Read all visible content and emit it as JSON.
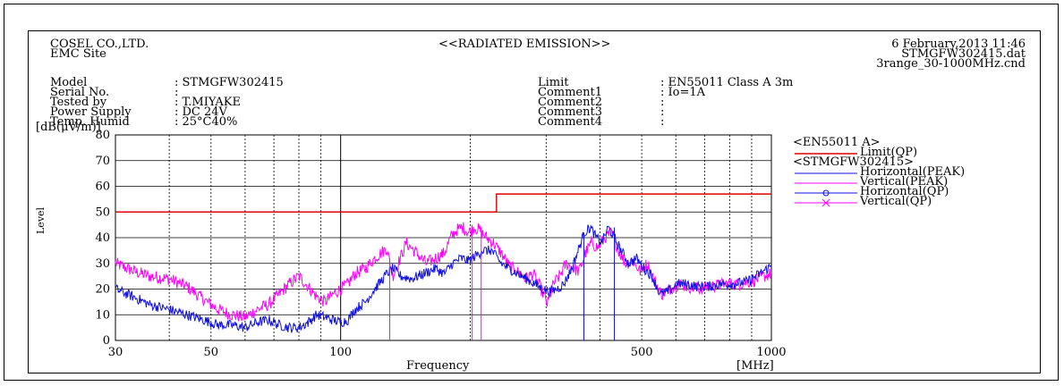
{
  "header": {
    "company": "COSEL CO.,LTD.",
    "site": "EMC Site",
    "title": "<<RADIATED EMISSION>>",
    "date": "6 February,2013 11:46",
    "data_file": "STMGFW302415.dat",
    "cond_file": "3range_30-1000MHz.cnd"
  },
  "info_left": {
    "labels": [
      "Model",
      "Serial No.",
      "Tested by",
      "Power Supply",
      "Temp. Humid"
    ],
    "values": [
      ": STMGFW302415",
      ":",
      ": T.MIYAKE",
      ": DC 24V",
      ": 25°C40%"
    ]
  },
  "info_right": {
    "labels": [
      "Limit",
      "Comment1",
      "Comment2",
      "Comment3",
      "Comment4"
    ],
    "values": [
      ": EN55011  Class A 3m",
      ": Io=1A",
      ":",
      ":",
      ":"
    ]
  },
  "legend": {
    "group1": "<EN55011 A>",
    "limit": "Limit(QP)",
    "group2": "<STMGFW302415>",
    "h_peak": "Horizontal(PEAK)",
    "v_peak": "Vertical(PEAK)",
    "h_qp": "Horizontal(QP)",
    "v_qp": "Vertical(QP)"
  },
  "chart_data": {
    "type": "line",
    "x_scale": "log",
    "xlim": [
      30,
      1000
    ],
    "ylim": [
      0,
      80
    ],
    "x_ticks": [
      30,
      50,
      100,
      500,
      1000
    ],
    "y_ticks": [
      0,
      10,
      20,
      30,
      40,
      50,
      60,
      70,
      80
    ],
    "xlabel": "Frequency",
    "x_unit": "[MHz]",
    "ylabel": "Level",
    "y_unit": "[dB(μV/m)]",
    "grid": true,
    "legend_position": "right",
    "colors": {
      "limit": "#e00000",
      "horizontal": "#1010e0",
      "vertical": "#ff00ff"
    },
    "limit": {
      "name": "Limit(QP)",
      "segments": [
        {
          "x": [
            30,
            230
          ],
          "y": 50
        },
        {
          "x": [
            230,
            1000
          ],
          "y": 57
        }
      ]
    },
    "series": [
      {
        "name": "Vertical(PEAK)",
        "points": [
          [
            30,
            30
          ],
          [
            33,
            27
          ],
          [
            36,
            25
          ],
          [
            40,
            24
          ],
          [
            44,
            21
          ],
          [
            48,
            16
          ],
          [
            52,
            12
          ],
          [
            56,
            10
          ],
          [
            60,
            9
          ],
          [
            64,
            12
          ],
          [
            68,
            14
          ],
          [
            72,
            18
          ],
          [
            76,
            22
          ],
          [
            80,
            25
          ],
          [
            84,
            21
          ],
          [
            88,
            17
          ],
          [
            92,
            15
          ],
          [
            96,
            18
          ],
          [
            100,
            20
          ],
          [
            104,
            22
          ],
          [
            108,
            26
          ],
          [
            114,
            28
          ],
          [
            120,
            32
          ],
          [
            128,
            36
          ],
          [
            132,
            25
          ],
          [
            136,
            30
          ],
          [
            142,
            38
          ],
          [
            150,
            34
          ],
          [
            158,
            30
          ],
          [
            166,
            32
          ],
          [
            174,
            34
          ],
          [
            180,
            40
          ],
          [
            186,
            43
          ],
          [
            192,
            44
          ],
          [
            198,
            42
          ],
          [
            204,
            44
          ],
          [
            210,
            43
          ],
          [
            218,
            40
          ],
          [
            226,
            38
          ],
          [
            236,
            34
          ],
          [
            246,
            29
          ],
          [
            256,
            27
          ],
          [
            268,
            24
          ],
          [
            280,
            26
          ],
          [
            294,
            19
          ],
          [
            302,
            14
          ],
          [
            312,
            22
          ],
          [
            322,
            25
          ],
          [
            334,
            30
          ],
          [
            346,
            28
          ],
          [
            358,
            27
          ],
          [
            370,
            34
          ],
          [
            382,
            38
          ],
          [
            396,
            36
          ],
          [
            410,
            40
          ],
          [
            426,
            42
          ],
          [
            442,
            35
          ],
          [
            458,
            30
          ],
          [
            476,
            31
          ],
          [
            496,
            27
          ],
          [
            516,
            30
          ],
          [
            536,
            23
          ],
          [
            556,
            18
          ],
          [
            580,
            20
          ],
          [
            610,
            22
          ],
          [
            640,
            21
          ],
          [
            680,
            20
          ],
          [
            720,
            21
          ],
          [
            780,
            22
          ],
          [
            840,
            22
          ],
          [
            900,
            23
          ],
          [
            960,
            25
          ],
          [
            1000,
            26
          ]
        ]
      },
      {
        "name": "Horizontal(PEAK)",
        "points": [
          [
            30,
            20
          ],
          [
            33,
            17
          ],
          [
            36,
            14
          ],
          [
            40,
            12
          ],
          [
            44,
            10
          ],
          [
            48,
            8
          ],
          [
            52,
            6
          ],
          [
            56,
            6
          ],
          [
            60,
            5
          ],
          [
            64,
            7
          ],
          [
            68,
            8
          ],
          [
            72,
            6
          ],
          [
            76,
            5
          ],
          [
            80,
            5
          ],
          [
            84,
            7
          ],
          [
            88,
            10
          ],
          [
            92,
            9
          ],
          [
            96,
            8
          ],
          [
            100,
            7
          ],
          [
            104,
            8
          ],
          [
            108,
            12
          ],
          [
            114,
            15
          ],
          [
            120,
            20
          ],
          [
            128,
            26
          ],
          [
            132,
            28
          ],
          [
            138,
            25
          ],
          [
            146,
            24
          ],
          [
            156,
            26
          ],
          [
            166,
            28
          ],
          [
            174,
            26
          ],
          [
            182,
            30
          ],
          [
            190,
            32
          ],
          [
            198,
            31
          ],
          [
            206,
            33
          ],
          [
            214,
            35
          ],
          [
            224,
            35
          ],
          [
            236,
            30
          ],
          [
            246,
            28
          ],
          [
            258,
            26
          ],
          [
            270,
            24
          ],
          [
            282,
            22
          ],
          [
            294,
            20
          ],
          [
            306,
            19
          ],
          [
            318,
            20
          ],
          [
            330,
            22
          ],
          [
            344,
            28
          ],
          [
            356,
            35
          ],
          [
            368,
            42
          ],
          [
            380,
            44
          ],
          [
            392,
            40
          ],
          [
            404,
            38
          ],
          [
            418,
            44
          ],
          [
            432,
            40
          ],
          [
            448,
            35
          ],
          [
            466,
            30
          ],
          [
            486,
            32
          ],
          [
            506,
            28
          ],
          [
            528,
            25
          ],
          [
            552,
            18
          ],
          [
            576,
            19
          ],
          [
            604,
            22
          ],
          [
            636,
            22
          ],
          [
            672,
            21
          ],
          [
            712,
            21
          ],
          [
            760,
            22
          ],
          [
            820,
            22
          ],
          [
            880,
            23
          ],
          [
            940,
            26
          ],
          [
            1000,
            29
          ]
        ]
      },
      {
        "name": "Horizontal(QP)",
        "points": [
          [
            367,
            42
          ],
          [
            432,
            44
          ]
        ]
      },
      {
        "name": "Vertical(QP)",
        "points": [
          [
            130,
            32
          ],
          [
            202,
            43
          ],
          [
            212,
            44
          ]
        ]
      }
    ]
  }
}
